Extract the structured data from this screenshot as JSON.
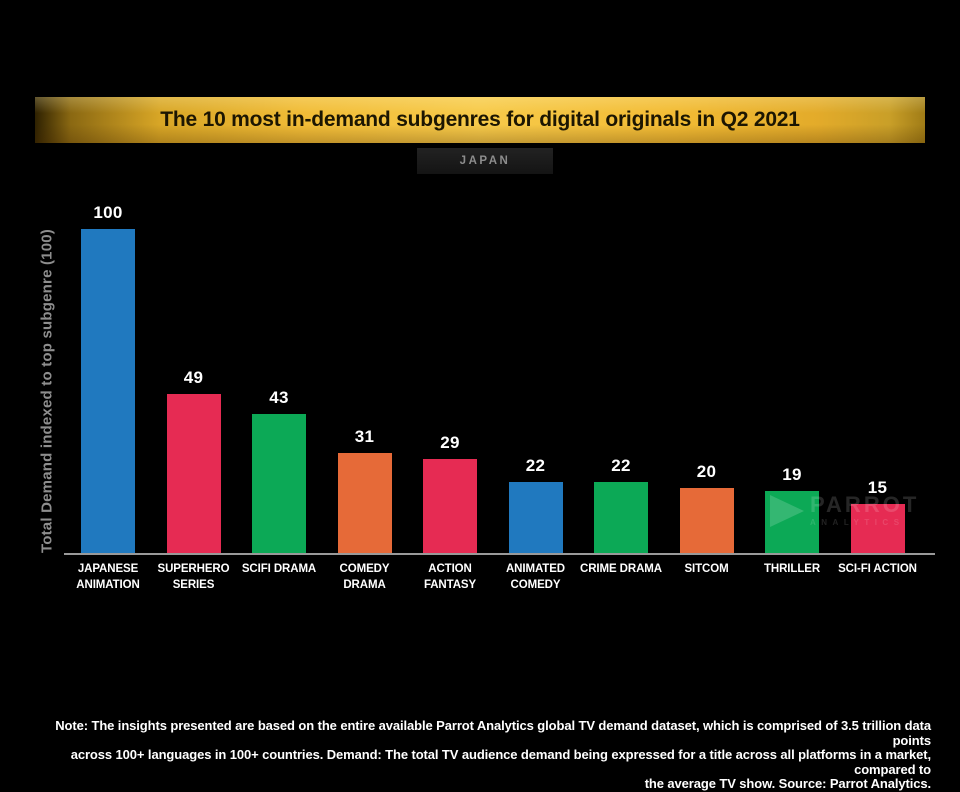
{
  "header": {
    "title_prefix": "The 10 most in-demand ",
    "title_bold": "subgenres",
    "title_suffix": " for digital originals in Q2 2021",
    "region": "JAPAN"
  },
  "chart_data": {
    "type": "bar",
    "title": "The 10 most in-demand subgenres for digital originals in Q2 2021",
    "region": "JAPAN",
    "categories": [
      "JAPANESE ANIMATION",
      "SUPERHERO SERIES",
      "SCIFI DRAMA",
      "COMEDY DRAMA",
      "ACTION FANTASY",
      "ANIMATED COMEDY",
      "CRIME DRAMA",
      "SITCOM",
      "THRILLER",
      "SCI-FI ACTION"
    ],
    "label_lines": [
      [
        "JAPANESE",
        "ANIMATION"
      ],
      [
        "SUPERHERO",
        "SERIES"
      ],
      [
        "SCIFI DRAMA"
      ],
      [
        "COMEDY",
        "DRAMA"
      ],
      [
        "ACTION",
        "FANTASY"
      ],
      [
        "ANIMATED",
        "COMEDY"
      ],
      [
        "CRIME DRAMA"
      ],
      [
        "SITCOM"
      ],
      [
        "THRILLER"
      ],
      [
        "SCI-FI ACTION"
      ]
    ],
    "values": [
      100,
      49,
      43,
      31,
      29,
      22,
      22,
      20,
      19,
      15
    ],
    "colors": [
      "#2079BF",
      "#E62B53",
      "#0CA956",
      "#E66A38",
      "#E62B53",
      "#2079BF",
      "#0CA956",
      "#E66A38",
      "#0CA956",
      "#E62B53"
    ],
    "xlabel": "",
    "ylabel": "Total Demand indexed to top subgenre (100)",
    "ylim": [
      0,
      100
    ],
    "grid": false,
    "legend": false,
    "background": "#000000",
    "accent_banner": "#f2bb34"
  },
  "watermark": {
    "brand": "PARROT",
    "sub": "ANALYTICS",
    "icon": "play-arrow-icon"
  },
  "footer": {
    "lines": [
      "Note: The insights presented are based on the entire available Parrot Analytics global TV demand dataset, which is comprised of 3.5 trillion data points",
      "across 100+ languages in 100+ countries. Demand: The total TV audience demand being expressed for a title across all platforms in a market, compared to",
      "the average TV show. Source: Parrot Analytics."
    ]
  }
}
